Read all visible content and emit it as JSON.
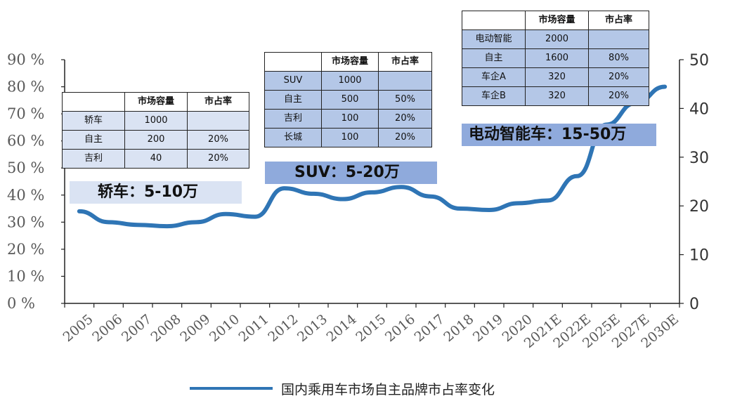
{
  "chart_data": {
    "type": "line",
    "categories": [
      "2005",
      "2006",
      "2007",
      "2008",
      "2009",
      "2010",
      "2011",
      "2012",
      "2013",
      "2014",
      "2015",
      "2016",
      "2017",
      "2018",
      "2019",
      "2020",
      "2021E",
      "2022E",
      "2025E",
      "2027E",
      "2030E"
    ],
    "series": [
      {
        "name": "国内乘用车市场自主品牌市占率变化",
        "values": [
          34,
          30,
          29,
          28.5,
          30,
          33,
          32,
          42.5,
          40.5,
          38.5,
          41,
          43,
          39.5,
          35,
          34.5,
          37,
          38,
          47,
          66,
          74,
          80
        ],
        "color": "#2f75b5"
      }
    ],
    "ylim_left": [
      0,
      90
    ],
    "yticks_left": [
      "0 %",
      "10 %",
      "20 %",
      "30 %",
      "40 %",
      "50 %",
      "60 %",
      "70 %",
      "80 %",
      "90 %"
    ],
    "ylim_right": [
      0,
      50
    ],
    "yticks_right": [
      "0",
      "10",
      "20",
      "30",
      "40",
      "50"
    ],
    "legend_position": "bottom-center",
    "grid": false
  },
  "tables": {
    "sedan": {
      "headers": [
        "",
        "市场容量",
        "市占率"
      ],
      "rows": [
        [
          "轿车",
          "1000",
          ""
        ],
        [
          "自主",
          "200",
          "20%"
        ],
        [
          "吉利",
          "40",
          "20%"
        ]
      ]
    },
    "suv": {
      "headers": [
        "",
        "市场容量",
        "市占率"
      ],
      "rows": [
        [
          "SUV",
          "1000",
          ""
        ],
        [
          "自主",
          "500",
          "50%"
        ],
        [
          "吉利",
          "100",
          "20%"
        ],
        [
          "长城",
          "100",
          "20%"
        ]
      ]
    },
    "ev": {
      "headers": [
        "",
        "市场容量",
        "市占率"
      ],
      "rows": [
        [
          "电动智能",
          "2000",
          ""
        ],
        [
          "自主",
          "1600",
          "80%"
        ],
        [
          "车企A",
          "320",
          "20%"
        ],
        [
          "车企B",
          "320",
          "20%"
        ]
      ]
    }
  },
  "banners": {
    "sedan": "轿车：5-10万",
    "suv": "SUV：5-20万",
    "ev": "电动智能车：15-50万"
  },
  "colors": {
    "line": "#2f75b5",
    "banner_light": "#dae3f3",
    "banner_mid": "#8faadc",
    "axis": "#222222"
  }
}
